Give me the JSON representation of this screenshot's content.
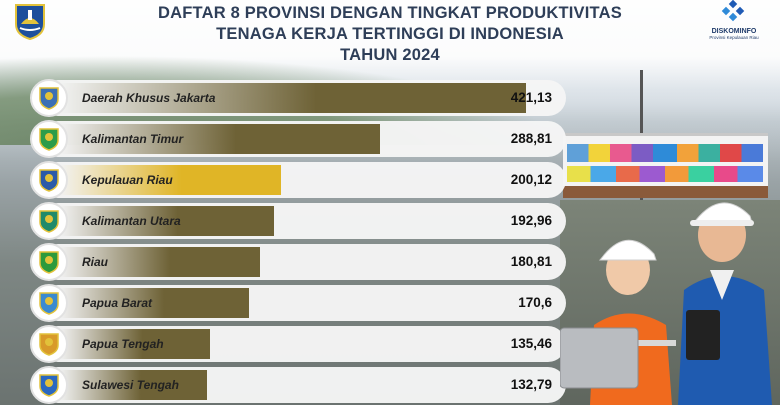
{
  "header": {
    "title_line1": "DAFTAR 8 PROVINSI DENGAN TINGKAT PRODUKTIVITAS",
    "title_line2": "TENAGA KERJA TERTINGGI DI INDONESIA",
    "title_line3": "TAHUN 2024",
    "right_logo_name": "DISKOMINFO",
    "right_logo_sub": "Provinsi Kepulauan Riau"
  },
  "colors": {
    "bar_default": "#6e6236",
    "bar_highlight": "#e0b526",
    "title": "#2e3e58"
  },
  "chart_data": {
    "type": "bar",
    "orientation": "horizontal",
    "title": "DAFTAR 8 PROVINSI DENGAN TINGKAT PRODUKTIVITAS TENAGA KERJA TERTINGGI DI INDONESIA TAHUN 2024",
    "categories": [
      "Daerah Khusus Jakarta",
      "Kalimantan Timur",
      "Kepulauan Riau",
      "Kalimantan Utara",
      "Riau",
      "Papua Barat",
      "Papua Tengah",
      "Sulawesi Tengah"
    ],
    "values": [
      421.13,
      288.81,
      200.12,
      192.96,
      180.81,
      170.6,
      135.46,
      132.79
    ],
    "value_labels": [
      "421,13",
      "288,81",
      "200,12",
      "192,96",
      "180,81",
      "170,6",
      "135,46",
      "132,79"
    ],
    "highlight_index": 2,
    "xlim": [
      0,
      421.13
    ]
  },
  "emblems": [
    {
      "color": "#3a6fb5"
    },
    {
      "color": "#2b9c4a"
    },
    {
      "color": "#2a5aa8"
    },
    {
      "color": "#1f8a6a"
    },
    {
      "color": "#2c9a3c"
    },
    {
      "color": "#3a8ad0"
    },
    {
      "color": "#d89a2a"
    },
    {
      "color": "#2a68c0"
    }
  ]
}
